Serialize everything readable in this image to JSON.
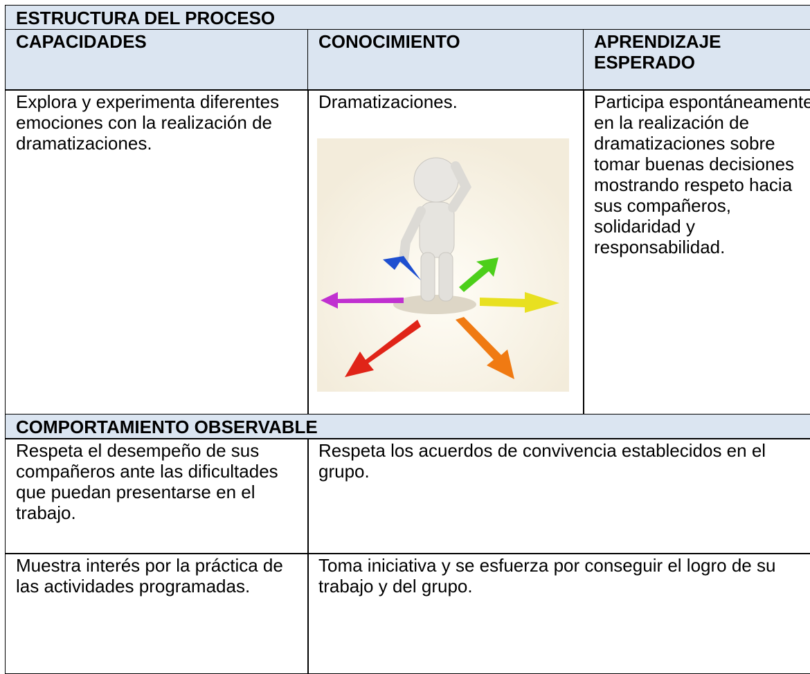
{
  "table": {
    "title": "ESTRUCTURA DEL PROCESO",
    "headers": [
      "CAPACIDADES",
      "CONOCIMIENTO",
      "APRENDIZAJE ESPERADO"
    ],
    "row": [
      "Explora y experimenta diferentes emociones con la realización de dramatizaciones.",
      "Dramatizaciones.",
      "Participa espontáneamente en la realización de dramatizaciones sobre tomar buenas decisiones mostrando respeto hacia sus compañeros, solidaridad y responsabilidad."
    ],
    "section": "COMPORTAMIENTO OBSERVABLE",
    "behaviors": [
      [
        "Respeta el desempeño de sus compañeros ante las dificultades que puedan presentarse en el trabajo.",
        "Respeta los acuerdos de convivencia establecidos en el grupo."
      ],
      [
        "Muestra interés por la práctica de las actividades programadas.",
        "Toma iniciativa y se esfuerza por conseguir el logro de su trabajo y del grupo."
      ]
    ]
  }
}
